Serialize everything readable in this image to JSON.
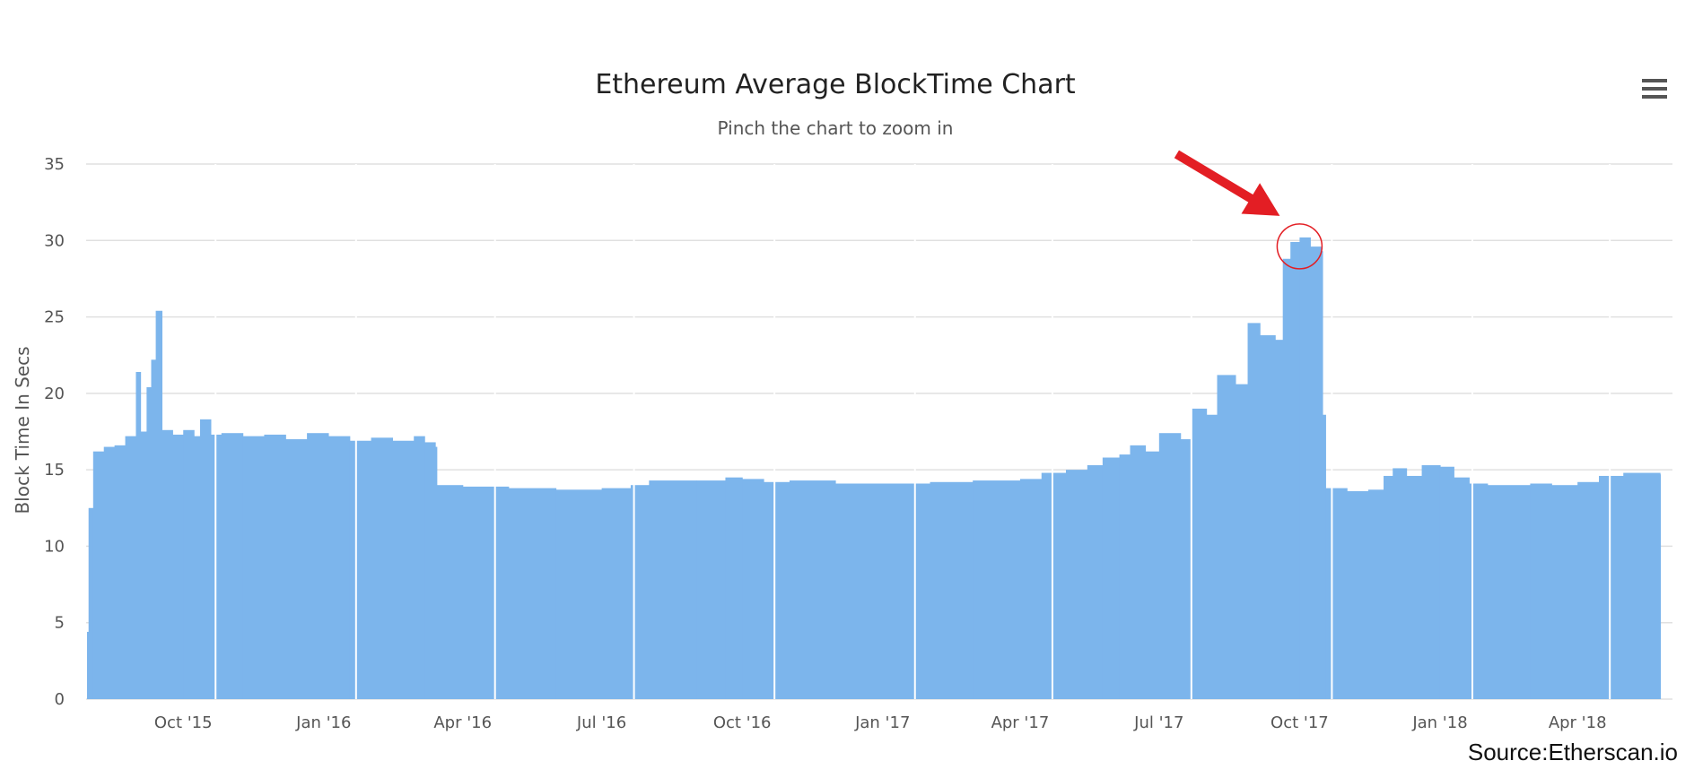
{
  "chart_data": {
    "type": "bar",
    "title": "Ethereum Average BlockTime Chart",
    "subtitle": "Pinch the chart to zoom in",
    "ylabel": "Block Time In Secs",
    "xlabel": "",
    "ylim": [
      0,
      35
    ],
    "y_ticks": [
      0,
      5,
      10,
      15,
      20,
      25,
      30,
      35
    ],
    "x_ticks": [
      "Oct '15",
      "Jan '16",
      "Apr '16",
      "Jul '16",
      "Oct '16",
      "Jan '17",
      "Apr '17",
      "Jul '17",
      "Oct '17",
      "Jan '18",
      "Apr '18"
    ],
    "x_tick_dates": [
      "2015-10-01",
      "2016-01-01",
      "2016-04-01",
      "2016-07-01",
      "2016-10-01",
      "2017-01-01",
      "2017-04-01",
      "2017-07-01",
      "2017-10-01",
      "2018-01-01",
      "2018-04-01"
    ],
    "x_range": [
      "2015-07-30",
      "2018-06-01"
    ],
    "grid": true,
    "legend": "none",
    "colors": {
      "bar": "#7cb5ec",
      "annotation": "#e31e24",
      "grid": "#e0e0e0"
    },
    "series": [
      {
        "points": [
          [
            "2015-07-30",
            4.4
          ],
          [
            "2015-07-31",
            12.5
          ],
          [
            "2015-08-03",
            16.2
          ],
          [
            "2015-08-10",
            16.5
          ],
          [
            "2015-08-17",
            16.6
          ],
          [
            "2015-08-24",
            17.2
          ],
          [
            "2015-08-31",
            21.4
          ],
          [
            "2015-09-03",
            17.5
          ],
          [
            "2015-09-07",
            20.4
          ],
          [
            "2015-09-10",
            22.2
          ],
          [
            "2015-09-13",
            25.4
          ],
          [
            "2015-09-17",
            17.6
          ],
          [
            "2015-09-24",
            17.3
          ],
          [
            "2015-10-01",
            17.6
          ],
          [
            "2015-10-08",
            17.2
          ],
          [
            "2015-10-12",
            18.3
          ],
          [
            "2015-10-19",
            17.3
          ],
          [
            "2015-10-26",
            17.4
          ],
          [
            "2015-11-09",
            17.2
          ],
          [
            "2015-11-23",
            17.3
          ],
          [
            "2015-12-07",
            17.0
          ],
          [
            "2015-12-21",
            17.4
          ],
          [
            "2016-01-04",
            17.2
          ],
          [
            "2016-01-18",
            16.9
          ],
          [
            "2016-02-01",
            17.1
          ],
          [
            "2016-02-15",
            16.9
          ],
          [
            "2016-02-29",
            17.2
          ],
          [
            "2016-03-07",
            16.8
          ],
          [
            "2016-03-14",
            16.5
          ],
          [
            "2016-03-15",
            14.0
          ],
          [
            "2016-04-01",
            13.9
          ],
          [
            "2016-05-01",
            13.8
          ],
          [
            "2016-06-01",
            13.7
          ],
          [
            "2016-07-01",
            13.8
          ],
          [
            "2016-07-20",
            14.0
          ],
          [
            "2016-08-01",
            14.3
          ],
          [
            "2016-09-01",
            14.3
          ],
          [
            "2016-09-20",
            14.5
          ],
          [
            "2016-10-01",
            14.4
          ],
          [
            "2016-10-15",
            14.2
          ],
          [
            "2016-11-01",
            14.3
          ],
          [
            "2016-12-01",
            14.1
          ],
          [
            "2017-01-01",
            14.1
          ],
          [
            "2017-02-01",
            14.2
          ],
          [
            "2017-03-01",
            14.3
          ],
          [
            "2017-04-01",
            14.4
          ],
          [
            "2017-04-15",
            14.8
          ],
          [
            "2017-05-01",
            15.0
          ],
          [
            "2017-05-15",
            15.3
          ],
          [
            "2017-05-25",
            15.8
          ],
          [
            "2017-06-05",
            16.0
          ],
          [
            "2017-06-12",
            16.6
          ],
          [
            "2017-06-22",
            16.2
          ],
          [
            "2017-07-01",
            17.4
          ],
          [
            "2017-07-15",
            17.0
          ],
          [
            "2017-07-22",
            19.0
          ],
          [
            "2017-08-01",
            18.6
          ],
          [
            "2017-08-08",
            21.2
          ],
          [
            "2017-08-20",
            20.6
          ],
          [
            "2017-08-28",
            24.6
          ],
          [
            "2017-09-05",
            23.8
          ],
          [
            "2017-09-15",
            23.5
          ],
          [
            "2017-09-20",
            28.8
          ],
          [
            "2017-09-25",
            29.9
          ],
          [
            "2017-10-01",
            30.2
          ],
          [
            "2017-10-08",
            29.6
          ],
          [
            "2017-10-15",
            29.3
          ],
          [
            "2017-10-16",
            18.6
          ],
          [
            "2017-10-18",
            13.8
          ],
          [
            "2017-11-01",
            13.6
          ],
          [
            "2017-11-15",
            13.7
          ],
          [
            "2017-11-25",
            14.6
          ],
          [
            "2017-12-01",
            15.1
          ],
          [
            "2017-12-10",
            14.6
          ],
          [
            "2017-12-20",
            15.3
          ],
          [
            "2018-01-01",
            15.2
          ],
          [
            "2018-01-10",
            14.5
          ],
          [
            "2018-01-20",
            14.1
          ],
          [
            "2018-02-01",
            14.0
          ],
          [
            "2018-03-01",
            14.1
          ],
          [
            "2018-03-15",
            14.0
          ],
          [
            "2018-04-01",
            14.2
          ],
          [
            "2018-04-15",
            14.6
          ],
          [
            "2018-05-01",
            14.8
          ],
          [
            "2018-05-25",
            14.7
          ]
        ]
      }
    ],
    "annotation": {
      "type": "arrow-and-circle",
      "date": "2017-10-01",
      "value": 30.2
    },
    "source": "Source:Etherscan.io"
  },
  "menu": {
    "icon": "hamburger-menu-icon"
  }
}
